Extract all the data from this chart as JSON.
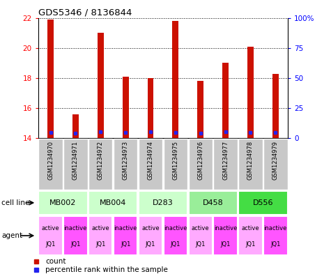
{
  "title": "GDS5346 / 8136844",
  "samples": [
    "GSM1234970",
    "GSM1234971",
    "GSM1234972",
    "GSM1234973",
    "GSM1234974",
    "GSM1234975",
    "GSM1234976",
    "GSM1234977",
    "GSM1234978",
    "GSM1234979"
  ],
  "count_values": [
    21.9,
    15.6,
    21.0,
    18.1,
    18.0,
    21.8,
    17.8,
    19.0,
    20.1,
    18.3
  ],
  "percentile_values": [
    14.38,
    14.33,
    14.42,
    14.38,
    14.42,
    14.38,
    14.33,
    14.42,
    14.38,
    14.38
  ],
  "y_min": 14,
  "y_max": 22,
  "y_ticks_left": [
    14,
    16,
    18,
    20,
    22
  ],
  "y_ticks_right": [
    0,
    25,
    50,
    75,
    100
  ],
  "cell_line_groups": [
    {
      "label": "MB002",
      "start": 0,
      "end": 1,
      "color": "#ccffcc"
    },
    {
      "label": "MB004",
      "start": 2,
      "end": 3,
      "color": "#ccffcc"
    },
    {
      "label": "D283",
      "start": 4,
      "end": 5,
      "color": "#ccffcc"
    },
    {
      "label": "D458",
      "start": 6,
      "end": 7,
      "color": "#99ee99"
    },
    {
      "label": "D556",
      "start": 8,
      "end": 9,
      "color": "#44dd44"
    }
  ],
  "agents": [
    "active",
    "inactive",
    "active",
    "inactive",
    "active",
    "inactive",
    "active",
    "inactive",
    "active",
    "inactive"
  ],
  "agent_line2": "JQ1",
  "active_color": "#ffaaff",
  "inactive_color": "#ff55ff",
  "bar_color": "#cc1100",
  "blue_color": "#2222ee",
  "bar_width": 0.25,
  "sample_box_color": "#c8c8c8",
  "left_label_color": "red",
  "right_label_color": "blue"
}
